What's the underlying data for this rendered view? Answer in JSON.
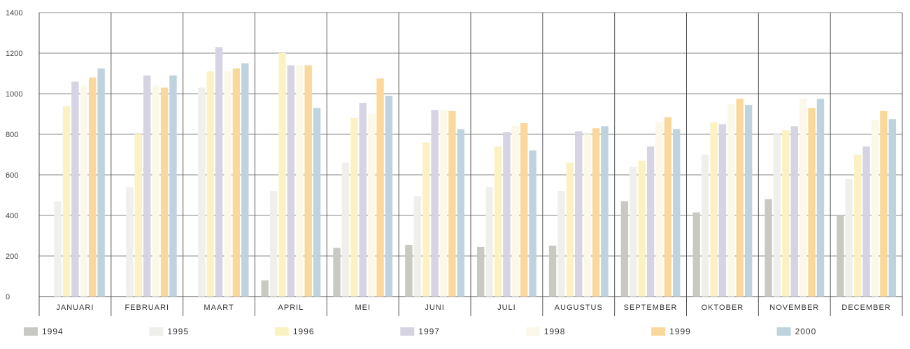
{
  "chart_data": {
    "type": "bar",
    "title": "",
    "xlabel": "",
    "ylabel": "",
    "ylim": [
      0,
      1400
    ],
    "yticks": [
      0,
      200,
      400,
      600,
      800,
      1000,
      1200,
      1400
    ],
    "grid": true,
    "legend_position": "bottom",
    "categories": [
      "JANUARI",
      "FEBRUARI",
      "MAART",
      "APRIL",
      "MEI",
      "JUNI",
      "JULI",
      "AUGUSTUS",
      "SEPTEMBER",
      "OKTOBER",
      "NOVEMBER",
      "DECEMBER"
    ],
    "series": [
      {
        "name": "1994",
        "color": "#c9c9c4",
        "values": [
          0,
          0,
          0,
          80,
          240,
          255,
          245,
          250,
          470,
          415,
          480,
          400
        ]
      },
      {
        "name": "1995",
        "color": "#efefec",
        "values": [
          470,
          540,
          1030,
          520,
          660,
          495,
          540,
          520,
          640,
          700,
          800,
          580
        ]
      },
      {
        "name": "1996",
        "color": "#fbf2c4",
        "values": [
          940,
          800,
          1110,
          1200,
          880,
          760,
          740,
          660,
          670,
          860,
          820,
          700
        ]
      },
      {
        "name": "1997",
        "color": "#d6d4e2",
        "values": [
          1060,
          1090,
          1230,
          1140,
          955,
          920,
          810,
          815,
          740,
          850,
          840,
          740
        ]
      },
      {
        "name": "1998",
        "color": "#fbf8ea",
        "values": [
          1040,
          1040,
          1110,
          1140,
          900,
          920,
          840,
          800,
          860,
          950,
          975,
          870
        ]
      },
      {
        "name": "1999",
        "color": "#fad89c",
        "values": [
          1080,
          1030,
          1125,
          1140,
          1075,
          915,
          855,
          830,
          885,
          975,
          930,
          915
        ]
      },
      {
        "name": "2000",
        "color": "#bfd3df",
        "values": [
          1125,
          1090,
          1150,
          930,
          990,
          825,
          720,
          840,
          825,
          945,
          975,
          875
        ]
      }
    ]
  }
}
